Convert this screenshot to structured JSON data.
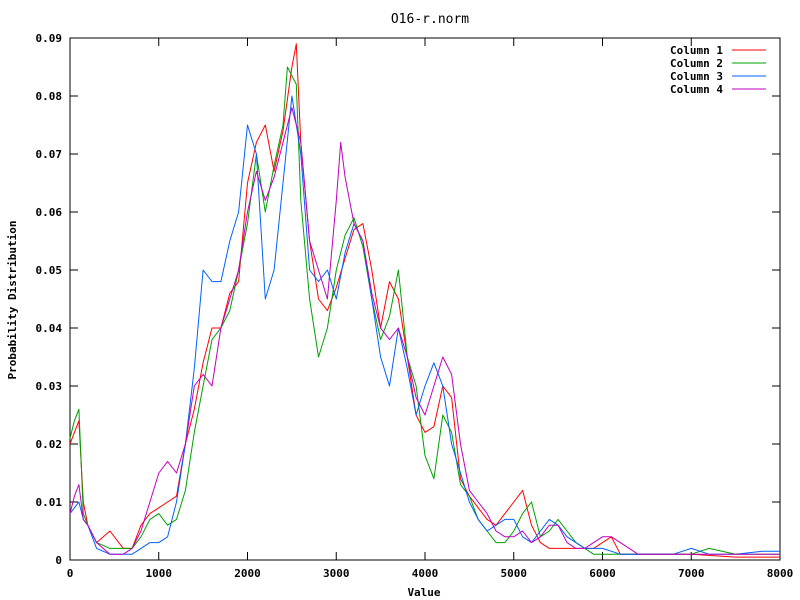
{
  "chart_data": {
    "type": "line",
    "title": "O16-r.norm",
    "xlabel": "Value",
    "ylabel": "Probability Distribution",
    "xlim": [
      0,
      8000
    ],
    "ylim": [
      0,
      0.09
    ],
    "x_ticks": [
      "0",
      "1000",
      "2000",
      "3000",
      "4000",
      "5000",
      "6000",
      "7000",
      "8000"
    ],
    "y_ticks": [
      "0",
      "0.01",
      "0.02",
      "0.03",
      "0.04",
      "0.05",
      "0.06",
      "0.07",
      "0.08",
      "0.09"
    ],
    "grid": false,
    "legend_position": "top-right",
    "series": [
      {
        "name": "Column 1",
        "color": "#ff0000",
        "x": [
          0,
          50,
          100,
          150,
          200,
          300,
          450,
          600,
          700,
          800,
          900,
          1000,
          1100,
          1200,
          1300,
          1400,
          1500,
          1600,
          1700,
          1800,
          1900,
          2000,
          2100,
          2200,
          2300,
          2400,
          2500,
          2550,
          2600,
          2700,
          2800,
          2900,
          3000,
          3100,
          3200,
          3300,
          3400,
          3500,
          3600,
          3700,
          3800,
          3900,
          4000,
          4100,
          4200,
          4300,
          4400,
          4500,
          4600,
          4700,
          4800,
          4900,
          5000,
          5100,
          5200,
          5300,
          5400,
          5500,
          5600,
          5700,
          5800,
          5900,
          6000,
          6100,
          6200,
          6400,
          6600,
          7000,
          7500,
          8000
        ],
        "values": [
          0.02,
          0.022,
          0.024,
          0.01,
          0.006,
          0.003,
          0.005,
          0.002,
          0.002,
          0.006,
          0.008,
          0.009,
          0.01,
          0.011,
          0.02,
          0.026,
          0.034,
          0.04,
          0.04,
          0.046,
          0.048,
          0.065,
          0.072,
          0.075,
          0.067,
          0.074,
          0.085,
          0.089,
          0.072,
          0.055,
          0.045,
          0.043,
          0.047,
          0.052,
          0.057,
          0.058,
          0.05,
          0.04,
          0.048,
          0.045,
          0.035,
          0.025,
          0.022,
          0.023,
          0.03,
          0.028,
          0.014,
          0.011,
          0.009,
          0.007,
          0.006,
          0.008,
          0.01,
          0.012,
          0.006,
          0.003,
          0.002,
          0.002,
          0.002,
          0.002,
          0.002,
          0.002,
          0.003,
          0.004,
          0.001,
          0.001,
          0.001,
          0.001,
          0.0005,
          0.0005
        ]
      },
      {
        "name": "Column 2",
        "color": "#00a000",
        "x": [
          0,
          50,
          100,
          150,
          200,
          300,
          450,
          600,
          700,
          800,
          900,
          1000,
          1100,
          1200,
          1300,
          1400,
          1500,
          1600,
          1700,
          1800,
          1900,
          2000,
          2100,
          2200,
          2300,
          2400,
          2450,
          2550,
          2600,
          2700,
          2800,
          2900,
          3000,
          3100,
          3200,
          3300,
          3400,
          3500,
          3600,
          3700,
          3800,
          3900,
          4000,
          4100,
          4200,
          4300,
          4400,
          4500,
          4600,
          4700,
          4800,
          4900,
          5000,
          5100,
          5200,
          5300,
          5400,
          5500,
          5600,
          5700,
          5800,
          5900,
          6000,
          6200,
          6500,
          7000,
          7200,
          7500,
          8000
        ],
        "values": [
          0.021,
          0.024,
          0.026,
          0.008,
          0.006,
          0.003,
          0.002,
          0.002,
          0.002,
          0.004,
          0.007,
          0.008,
          0.006,
          0.007,
          0.012,
          0.022,
          0.03,
          0.038,
          0.04,
          0.043,
          0.05,
          0.058,
          0.07,
          0.06,
          0.068,
          0.075,
          0.085,
          0.082,
          0.062,
          0.045,
          0.035,
          0.04,
          0.05,
          0.056,
          0.059,
          0.054,
          0.045,
          0.038,
          0.042,
          0.05,
          0.035,
          0.03,
          0.018,
          0.014,
          0.025,
          0.022,
          0.013,
          0.011,
          0.007,
          0.005,
          0.003,
          0.003,
          0.005,
          0.008,
          0.01,
          0.004,
          0.005,
          0.007,
          0.005,
          0.003,
          0.002,
          0.001,
          0.001,
          0.001,
          0.001,
          0.001,
          0.002,
          0.001,
          0.001
        ]
      },
      {
        "name": "Column 3",
        "color": "#0060ff",
        "x": [
          0,
          50,
          100,
          150,
          200,
          300,
          450,
          600,
          700,
          800,
          900,
          1000,
          1100,
          1200,
          1300,
          1400,
          1500,
          1600,
          1700,
          1800,
          1900,
          2000,
          2100,
          2200,
          2300,
          2400,
          2500,
          2600,
          2700,
          2800,
          2900,
          3000,
          3100,
          3200,
          3300,
          3400,
          3500,
          3600,
          3700,
          3800,
          3900,
          4000,
          4100,
          4200,
          4300,
          4400,
          4500,
          4600,
          4700,
          4800,
          4900,
          5000,
          5100,
          5200,
          5300,
          5400,
          5500,
          5600,
          5700,
          5800,
          5900,
          6000,
          6200,
          6500,
          6800,
          7000,
          7200,
          7500,
          7800,
          8000
        ],
        "values": [
          0.008,
          0.009,
          0.01,
          0.007,
          0.006,
          0.002,
          0.001,
          0.001,
          0.001,
          0.002,
          0.003,
          0.003,
          0.004,
          0.01,
          0.02,
          0.033,
          0.05,
          0.048,
          0.048,
          0.055,
          0.06,
          0.075,
          0.07,
          0.045,
          0.05,
          0.065,
          0.08,
          0.07,
          0.05,
          0.048,
          0.05,
          0.045,
          0.053,
          0.058,
          0.055,
          0.045,
          0.035,
          0.03,
          0.04,
          0.033,
          0.025,
          0.03,
          0.034,
          0.03,
          0.02,
          0.015,
          0.01,
          0.007,
          0.005,
          0.006,
          0.007,
          0.007,
          0.004,
          0.003,
          0.005,
          0.007,
          0.006,
          0.004,
          0.003,
          0.002,
          0.002,
          0.002,
          0.001,
          0.001,
          0.001,
          0.002,
          0.001,
          0.001,
          0.0015,
          0.0015
        ]
      },
      {
        "name": "Column 4",
        "color": "#c000c0",
        "x": [
          0,
          50,
          100,
          150,
          200,
          300,
          450,
          600,
          700,
          800,
          900,
          1000,
          1100,
          1200,
          1300,
          1400,
          1500,
          1600,
          1700,
          1800,
          1900,
          2000,
          2100,
          2200,
          2300,
          2400,
          2500,
          2600,
          2700,
          2800,
          2900,
          3000,
          3050,
          3100,
          3200,
          3300,
          3400,
          3500,
          3600,
          3700,
          3800,
          3900,
          4000,
          4100,
          4200,
          4300,
          4400,
          4500,
          4600,
          4700,
          4800,
          4900,
          5000,
          5100,
          5200,
          5300,
          5400,
          5500,
          5600,
          5700,
          5800,
          5900,
          6000,
          6100,
          6200,
          6400,
          6600,
          7000,
          7500,
          8000
        ],
        "values": [
          0.008,
          0.011,
          0.013,
          0.007,
          0.006,
          0.003,
          0.001,
          0.001,
          0.002,
          0.005,
          0.01,
          0.015,
          0.017,
          0.015,
          0.02,
          0.03,
          0.032,
          0.03,
          0.04,
          0.045,
          0.05,
          0.06,
          0.067,
          0.062,
          0.066,
          0.072,
          0.078,
          0.072,
          0.055,
          0.05,
          0.045,
          0.062,
          0.072,
          0.066,
          0.058,
          0.055,
          0.046,
          0.04,
          0.038,
          0.04,
          0.035,
          0.028,
          0.025,
          0.03,
          0.035,
          0.032,
          0.02,
          0.012,
          0.01,
          0.008,
          0.005,
          0.004,
          0.004,
          0.005,
          0.003,
          0.004,
          0.006,
          0.006,
          0.003,
          0.002,
          0.002,
          0.003,
          0.004,
          0.004,
          0.003,
          0.001,
          0.001,
          0.001,
          0.001,
          0.001
        ]
      }
    ]
  }
}
